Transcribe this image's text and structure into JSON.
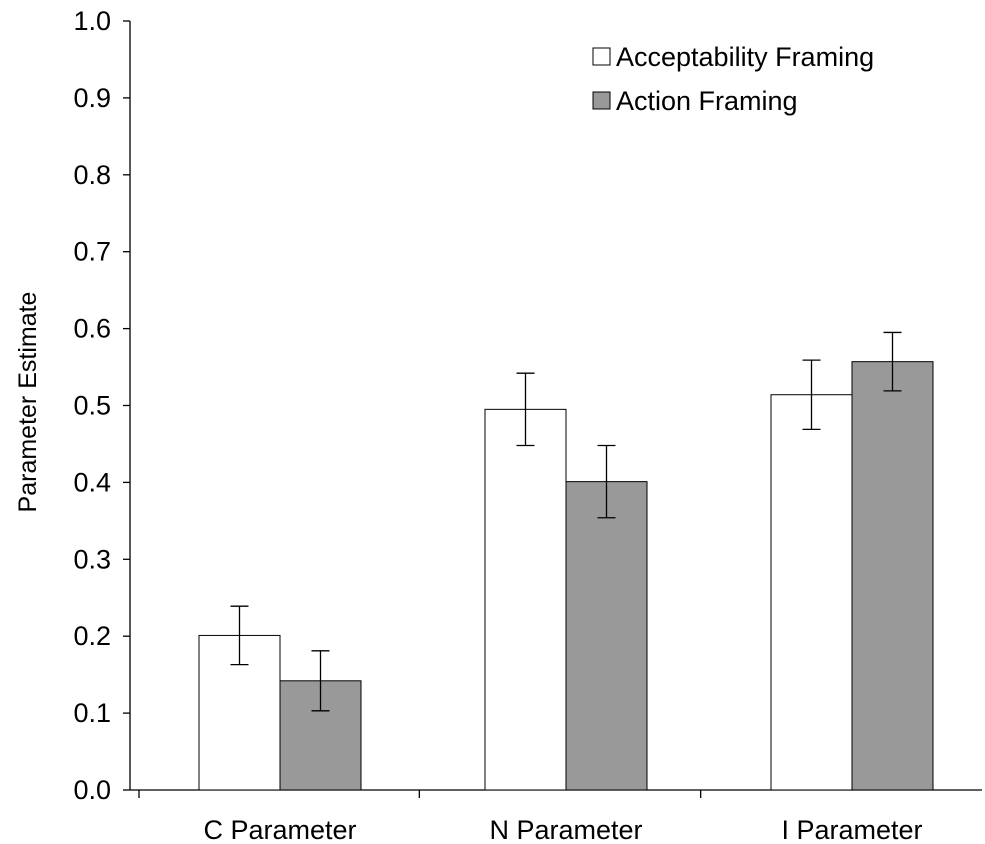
{
  "chart_data": {
    "type": "bar",
    "title": "",
    "xlabel": "",
    "ylabel": "Parameter Estimate",
    "ylim": [
      0,
      1.0
    ],
    "yticks": [
      0.0,
      0.1,
      0.2,
      0.3,
      0.4,
      0.5,
      0.6,
      0.7,
      0.8,
      0.9,
      1.0
    ],
    "ytick_labels": [
      "0.0",
      "0.1",
      "0.2",
      "0.3",
      "0.4",
      "0.5",
      "0.6",
      "0.7",
      "0.8",
      "0.9",
      "1.0"
    ],
    "categories": [
      "C Parameter",
      "N Parameter",
      "I Parameter"
    ],
    "series": [
      {
        "name": "Acceptability Framing",
        "color": "#ffffff",
        "values": [
          0.201,
          0.495,
          0.514
        ],
        "error": [
          0.038,
          0.047,
          0.045
        ]
      },
      {
        "name": "Action Framing",
        "color": "#999999",
        "values": [
          0.142,
          0.401,
          0.557
        ],
        "error": [
          0.039,
          0.047,
          0.038
        ]
      }
    ],
    "grid": false,
    "legend_position": "top-right"
  }
}
